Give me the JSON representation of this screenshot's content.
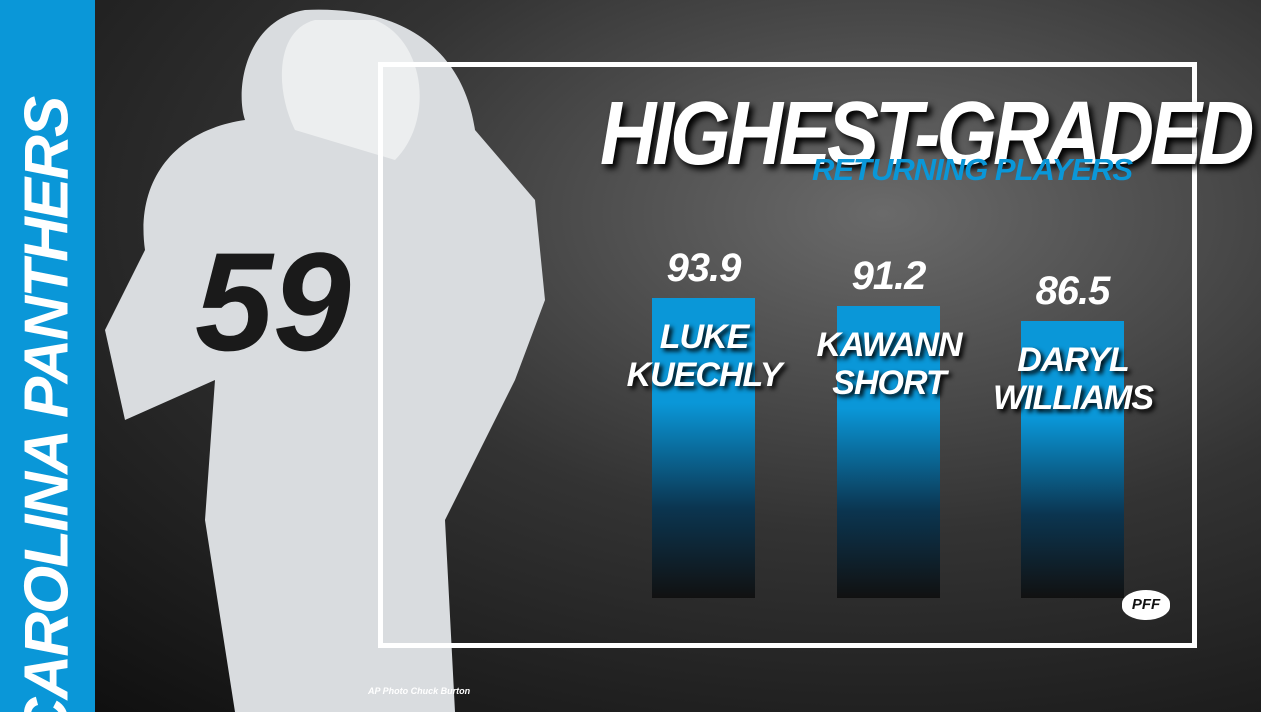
{
  "team": "CAROLINA PANTHERS",
  "credit": "AP Photo Chuck Burton",
  "logo": "PFF",
  "chart_data": {
    "type": "bar",
    "title": "HIGHEST-GRADED",
    "subtitle": "RETURNING PLAYERS",
    "categories": [
      "LUKE KUECHLY",
      "KAWANN SHORT",
      "DARYL WILLIAMS"
    ],
    "values": [
      93.9,
      91.2,
      86.5
    ],
    "color": "#0a97d8"
  }
}
